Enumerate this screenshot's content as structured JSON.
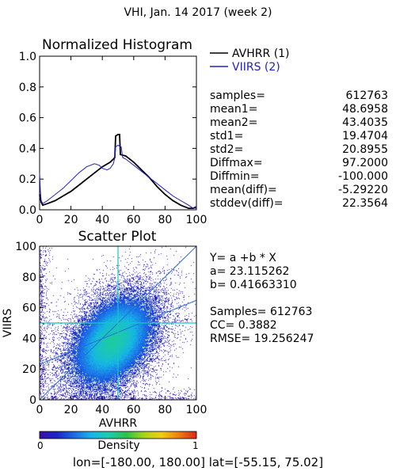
{
  "title": "VHI,  Jan. 14 2017 (week 2)",
  "chart_data": [
    {
      "type": "line",
      "title": "Normalized Histogram",
      "xlim": [
        0,
        100
      ],
      "ylim": [
        0,
        1.0
      ],
      "xticks": [
        "0",
        "20",
        "40",
        "60",
        "80",
        "100"
      ],
      "yticks": [
        "0.0",
        "0.2",
        "0.4",
        "0.6",
        "0.8",
        "1.0"
      ],
      "legend": {
        "placement": "top-right",
        "entries": [
          "AVHRR (1)",
          "VIIRS (2)"
        ]
      },
      "series": [
        {
          "name": "AVHRR (1)",
          "color": "#000000",
          "x": [
            0,
            1,
            2,
            5,
            10,
            15,
            20,
            25,
            30,
            35,
            40,
            45,
            47,
            48,
            48.5,
            50,
            51,
            51.5,
            55,
            60,
            65,
            70,
            75,
            80,
            85,
            90,
            95,
            98,
            100
          ],
          "y": [
            0.1,
            0.05,
            0.03,
            0.04,
            0.06,
            0.09,
            0.12,
            0.16,
            0.2,
            0.24,
            0.28,
            0.31,
            0.33,
            0.34,
            0.48,
            0.49,
            0.49,
            0.36,
            0.35,
            0.31,
            0.26,
            0.21,
            0.15,
            0.1,
            0.06,
            0.03,
            0.01,
            0.01,
            0.02
          ]
        },
        {
          "name": "VIIRS (2)",
          "color": "#2020c8",
          "x": [
            0,
            0.5,
            1,
            2,
            5,
            10,
            15,
            20,
            25,
            30,
            35,
            38,
            40,
            43,
            45,
            47,
            48,
            48.5,
            50,
            52,
            53,
            55,
            60,
            65,
            70,
            75,
            80,
            85,
            90,
            95,
            98,
            99.5,
            100
          ],
          "y": [
            0.24,
            0.12,
            0.06,
            0.04,
            0.06,
            0.1,
            0.14,
            0.19,
            0.24,
            0.28,
            0.3,
            0.29,
            0.27,
            0.26,
            0.27,
            0.3,
            0.34,
            0.41,
            0.42,
            0.41,
            0.34,
            0.33,
            0.29,
            0.25,
            0.21,
            0.17,
            0.13,
            0.09,
            0.06,
            0.03,
            0.01,
            0.01,
            0.03
          ]
        }
      ]
    },
    {
      "type": "heatmap",
      "title": "Scatter Plot",
      "xlabel": "AVHRR",
      "ylabel": "VIIRS",
      "xlim": [
        0,
        100
      ],
      "ylim": [
        0,
        100
      ],
      "xticks": [
        "0",
        "20",
        "40",
        "60",
        "80",
        "100"
      ],
      "yticks": [
        "0",
        "20",
        "40",
        "60",
        "80",
        "100"
      ],
      "distribution": {
        "center": [
          47,
          38
        ],
        "spread": [
          17,
          19
        ],
        "correlation": 0.39
      },
      "regression": {
        "intercept": 23.115262,
        "slope": 0.4166331
      },
      "crosshair": {
        "x": 50,
        "y": 50
      },
      "colorbar": {
        "label": "Density",
        "min_label": "0",
        "max_label": "1",
        "colors": [
          "#3a0fa8",
          "#1a26c8",
          "#1c6be6",
          "#16b6e6",
          "#1ccca8",
          "#2cc04a",
          "#a8d61a",
          "#f2cc12",
          "#f07c10",
          "#d8281a"
        ]
      }
    }
  ],
  "stats": [
    {
      "label": "samples=",
      "value": "612763"
    },
    {
      "label": "mean1=",
      "value": "48.6958"
    },
    {
      "label": "mean2=",
      "value": "43.4035"
    },
    {
      "label": "std1=",
      "value": "19.4704"
    },
    {
      "label": "std2=",
      "value": "20.8955"
    },
    {
      "label": "Diffmax=",
      "value": "97.2000"
    },
    {
      "label": "Diffmin=",
      "value": "-100.000"
    },
    {
      "label": "mean(diff)=",
      "value": "-5.29220"
    },
    {
      "label": "stddev(diff)=",
      "value": "22.3564"
    }
  ],
  "scatter_text": [
    "Y= a +b * X",
    "a= 23.115262",
    "b= 0.41663310",
    "",
    "Samples= 612763",
    "CC=  0.3882",
    "RMSE= 19.256247"
  ],
  "footer": "lon=[-180.00, 180.00] lat=[-55.15, 75.02]"
}
